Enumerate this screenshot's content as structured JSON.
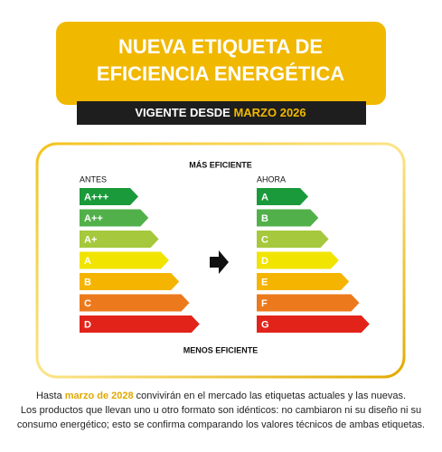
{
  "header": {
    "title_lines": [
      "NUEVA ETIQUETA DE",
      "EFICIENCIA ENERGÉTICA"
    ],
    "banner_prefix": "VIGENTE DESDE",
    "banner_highlight": "MARZO 2026"
  },
  "label": {
    "top": "MÁS EFICIENTE",
    "bottom": "MENOS EFICIENTE",
    "before": {
      "title": "ANTES",
      "classes": [
        {
          "name": "A+++",
          "color": "#1a9a3a"
        },
        {
          "name": "A++",
          "color": "#52b04a"
        },
        {
          "name": "A+",
          "color": "#a6c83c"
        },
        {
          "name": "A",
          "color": "#f0e400"
        },
        {
          "name": "B",
          "color": "#f5b400"
        },
        {
          "name": "C",
          "color": "#ec7a1c"
        },
        {
          "name": "D",
          "color": "#e2231a"
        }
      ]
    },
    "after": {
      "title": "AHORA",
      "classes": [
        {
          "name": "A",
          "color": "#1a9a3a"
        },
        {
          "name": "B",
          "color": "#52b04a"
        },
        {
          "name": "C",
          "color": "#a6c83c"
        },
        {
          "name": "D",
          "color": "#f0e400"
        },
        {
          "name": "E",
          "color": "#f5b400"
        },
        {
          "name": "F",
          "color": "#ec7a1c"
        },
        {
          "name": "G",
          "color": "#e2231a"
        }
      ]
    }
  },
  "footer": {
    "prefix": "Hasta",
    "highlight": "marzo de 2028",
    "rest": "convivirán en el mercado las etiquetas actuales y las nuevas.",
    "note": "Los productos que llevan uno u otro formato son idénticos: no cambiaron ni su diseño ni su consumo energético; esto se confirma comparando los valores técnicos de ambas etiquetas."
  }
}
